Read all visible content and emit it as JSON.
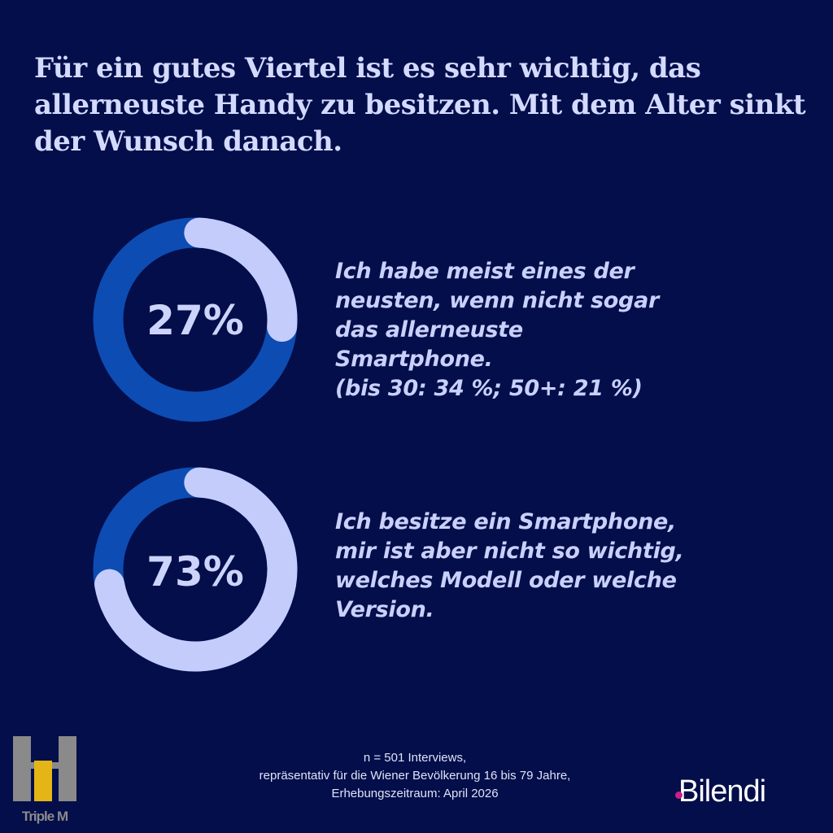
{
  "title": "Für ein gutes Viertel ist es sehr wichtig, das allerneuste Handy zu besitzen. Mit dem Alter sinkt der Wunsch danach.",
  "colors": {
    "background": "#030e4a",
    "ring": "#0d4cb3",
    "highlight": "#c4ccfb",
    "text": "#cdd4fb"
  },
  "chart_data": [
    {
      "type": "pie",
      "variant": "donut",
      "value": 27,
      "label": "27%",
      "description": "Ich habe meist eines der\nneusten, wenn nicht sogar\ndas allerneuste\nSmartphone.\n(bis 30: 34 %; 50+: 21 %)"
    },
    {
      "type": "pie",
      "variant": "donut",
      "value": 73,
      "label": "73%",
      "description": "Ich besitze ein Smartphone,\nmir ist aber nicht so wichtig,\nwelches Modell oder welche\nVersion."
    }
  ],
  "footer": {
    "line1": "n = 501 Interviews,",
    "line2": "repräsentativ für die Wiener Bevölkerung 16 bis 79 Jahre,",
    "line3": "Erhebungszeitraum: April 2026"
  },
  "logos": {
    "left": "Triple M",
    "right": "Bilendi"
  }
}
